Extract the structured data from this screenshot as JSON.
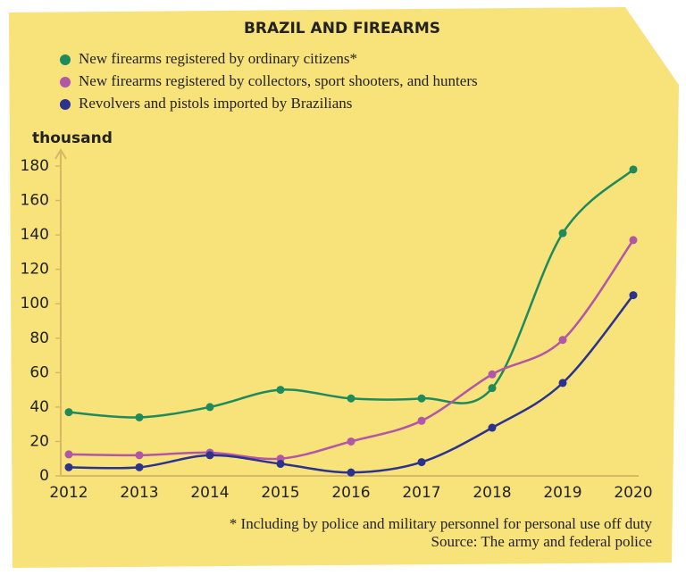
{
  "chart_data": {
    "type": "line",
    "title": "BRAZIL AND FIREARMS",
    "y_label": "thousand",
    "categories": [
      "2012",
      "2013",
      "2014",
      "2015",
      "2016",
      "2017",
      "2018",
      "2019",
      "2020"
    ],
    "series": [
      {
        "name": "New firearms registered by ordinary citizens*",
        "color": "#1f8a5c",
        "values": [
          37,
          34,
          40,
          50,
          45,
          45,
          51,
          141,
          178
        ]
      },
      {
        "name": "New firearms registered by collectors, sport shooters, and hunters",
        "color": "#b157a6",
        "values": [
          12.5,
          12,
          13.5,
          10,
          20,
          32,
          59,
          79,
          137
        ]
      },
      {
        "name": "Revolvers and pistols imported by Brazilians",
        "color": "#2b338f",
        "values": [
          5,
          5,
          12,
          7,
          2,
          8,
          28,
          54,
          105
        ]
      }
    ],
    "ylim": [
      0,
      180
    ],
    "yticks": [
      0,
      20,
      40,
      60,
      80,
      100,
      120,
      140,
      160,
      180
    ],
    "grid": false,
    "footnote": "* Including by police and military personnel for personal use off duty",
    "source": "Source: The army and federal police"
  }
}
